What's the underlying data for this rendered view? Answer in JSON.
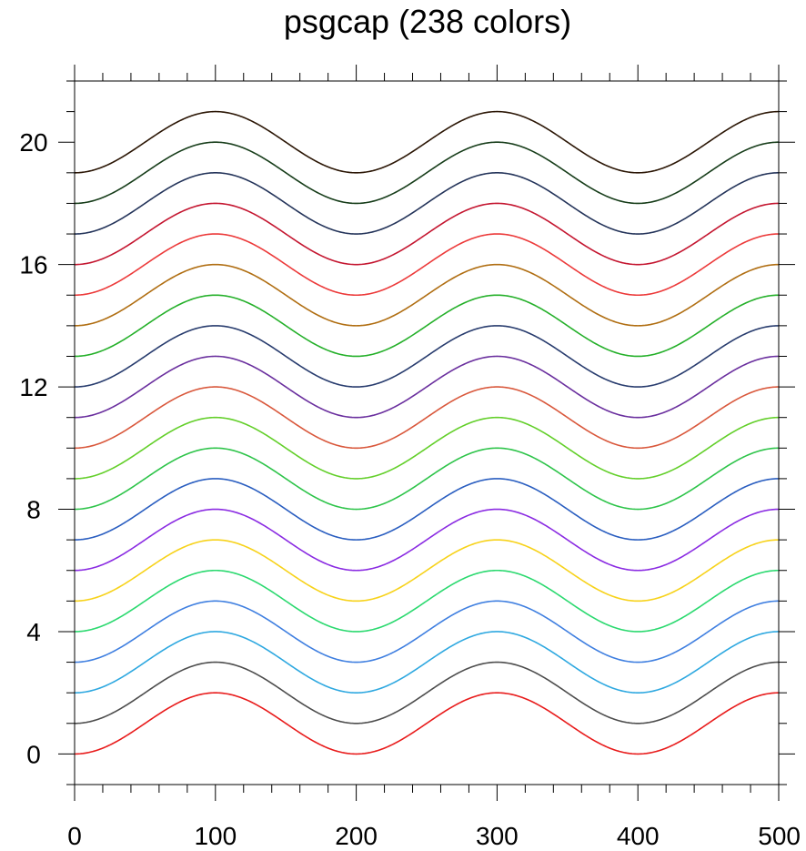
{
  "chart_data": {
    "type": "line",
    "title": "psgcap (238 colors)",
    "xlabel": "",
    "ylabel": "",
    "xlim": [
      0,
      500
    ],
    "ylim": [
      -1,
      22
    ],
    "grid": false,
    "legend": "none",
    "x_ticks": [
      0,
      100,
      200,
      300,
      400,
      500
    ],
    "y_ticks": [
      0,
      4,
      8,
      12,
      16,
      20
    ],
    "x_tick_labels": [
      "0",
      "100",
      "200",
      "300",
      "400",
      "500"
    ],
    "y_tick_labels": [
      "0",
      "4",
      "8",
      "12",
      "16",
      "20"
    ],
    "x_minor_step": 20,
    "y_minor_step": 1,
    "curve": "y = offset + sin(2*pi*(x - 50)/200), x from 0 to 500, period 200, amplitude 1",
    "period": 200,
    "amplitude": 1,
    "x_shift": 50,
    "series": [
      {
        "offset": 1,
        "color": "#e81b1b"
      },
      {
        "offset": 2,
        "color": "#4d4d4d"
      },
      {
        "offset": 3,
        "color": "#2ea8e0"
      },
      {
        "offset": 4,
        "color": "#3f7fe0"
      },
      {
        "offset": 5,
        "color": "#2bd96f"
      },
      {
        "offset": 6,
        "color": "#f7d21a"
      },
      {
        "offset": 7,
        "color": "#8a2be2"
      },
      {
        "offset": 8,
        "color": "#2a5ec0"
      },
      {
        "offset": 9,
        "color": "#2ec44a"
      },
      {
        "offset": 10,
        "color": "#63cf2a"
      },
      {
        "offset": 11,
        "color": "#d9583c"
      },
      {
        "offset": 12,
        "color": "#6a2f9e"
      },
      {
        "offset": 13,
        "color": "#283c6e"
      },
      {
        "offset": 14,
        "color": "#25b02a"
      },
      {
        "offset": 15,
        "color": "#b06e12"
      },
      {
        "offset": 16,
        "color": "#ec3a3a"
      },
      {
        "offset": 17,
        "color": "#c41630"
      },
      {
        "offset": 18,
        "color": "#24345a"
      },
      {
        "offset": 19,
        "color": "#173d1a"
      },
      {
        "offset": 20,
        "color": "#2b1605"
      }
    ]
  }
}
